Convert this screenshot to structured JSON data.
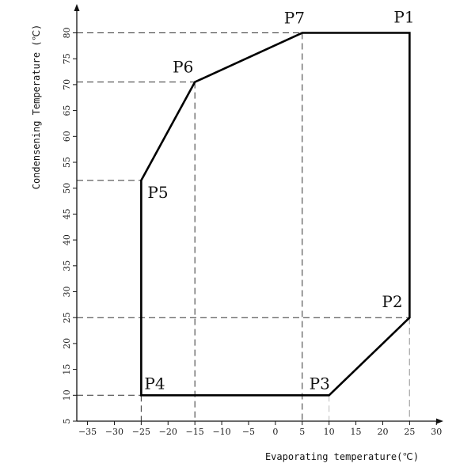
{
  "chart_data": {
    "type": "line",
    "title": "",
    "xlabel": "Evaporating temperature(℃)",
    "ylabel": "Condensening Temperature (℃)",
    "xlim": [
      -37,
      33
    ],
    "ylim": [
      5,
      86
    ],
    "x_ticks": [
      -35,
      -30,
      -25,
      -20,
      -15,
      -10,
      -5,
      0,
      5,
      10,
      15,
      20,
      25,
      30
    ],
    "y_ticks": [
      5,
      10,
      15,
      20,
      25,
      30,
      35,
      40,
      45,
      50,
      55,
      60,
      65,
      70,
      75,
      80
    ],
    "grid": false,
    "series": [
      {
        "points": [
          {
            "label": "P1",
            "x": 25,
            "y": 80
          },
          {
            "label": "P2",
            "x": 25,
            "y": 25
          },
          {
            "label": "P3",
            "x": 10,
            "y": 10
          },
          {
            "label": "P4",
            "x": -25,
            "y": 10
          },
          {
            "label": "P5",
            "x": -25,
            "y": 51.5
          },
          {
            "label": "P6",
            "x": -15,
            "y": 70.5
          },
          {
            "label": "P7",
            "x": 5,
            "y": 80
          }
        ],
        "closed": true
      }
    ],
    "reference_lines": [
      {
        "from": "P5",
        "to_axis": "y"
      },
      {
        "from": "P6",
        "to_axis": "y"
      },
      {
        "from": "P6",
        "to_axis": "x"
      },
      {
        "from": "P7",
        "to_axis": "y"
      },
      {
        "from": "P7",
        "to_axis": "x"
      },
      {
        "from": "P2",
        "to_axis": "y"
      },
      {
        "from": "P2",
        "to_axis": "x"
      },
      {
        "from": "P4",
        "to_axis": "y"
      },
      {
        "from": "P4",
        "to_axis": "x"
      }
    ]
  }
}
